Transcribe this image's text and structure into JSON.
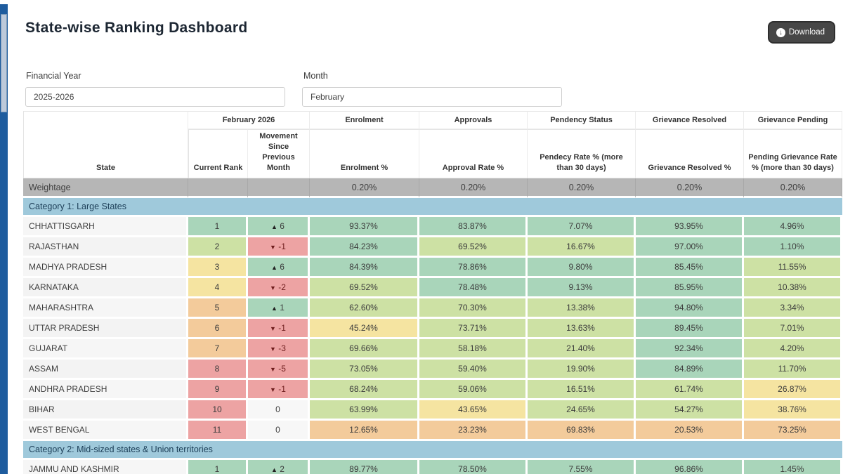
{
  "page": {
    "title": "State-wise Ranking Dashboard"
  },
  "toolbar": {
    "download_label": "Download"
  },
  "filters": {
    "financial_year": {
      "label": "Financial Year",
      "value": "2025-2026"
    },
    "month": {
      "label": "Month",
      "value": "February"
    }
  },
  "colors": {
    "g": "#a9d5ba",
    "lg": "#cde1a4",
    "y": "#f5e4a1",
    "o": "#f3cb9b",
    "r": "#eda3a3",
    "w": "#f7f7f7",
    "category_blue": "#9fc9db",
    "weightage_gray": "#b6b6b6",
    "scroll_track": "#1e5c9e",
    "button_dark": "#474747"
  },
  "table": {
    "group_headers": [
      "February 2026",
      "Enrolment",
      "Approvals",
      "Pendency Status",
      "Grievance Resolved",
      "Grievance Pending"
    ],
    "sub_headers": [
      "State",
      "Current Rank",
      "Movement Since Previous Month",
      "Enrolment %",
      "Approval Rate %",
      "Pendecy Rate % (more than 30 days)",
      "Grievance Resolved %",
      "Pending Grievance Rate % (more than 30 days)"
    ],
    "weightage": {
      "label": "Weightage",
      "values": [
        "0.20%",
        "0.20%",
        "0.20%",
        "0.20%",
        "0.20%"
      ]
    },
    "sections": [
      {
        "category": "Category 1: Large States",
        "rows": [
          {
            "state": "CHHATTISGARH",
            "rank": "1",
            "rank_color": "g",
            "movement": {
              "dir": "up",
              "value": "6",
              "color": "g"
            },
            "cells": [
              {
                "v": "93.37%",
                "c": "g"
              },
              {
                "v": "83.87%",
                "c": "g"
              },
              {
                "v": "7.07%",
                "c": "g"
              },
              {
                "v": "93.95%",
                "c": "g"
              },
              {
                "v": "4.96%",
                "c": "g"
              }
            ]
          },
          {
            "state": "RAJASTHAN",
            "rank": "2",
            "rank_color": "lg",
            "movement": {
              "dir": "down",
              "value": "-1",
              "color": "r"
            },
            "cells": [
              {
                "v": "84.23%",
                "c": "g"
              },
              {
                "v": "69.52%",
                "c": "lg"
              },
              {
                "v": "16.67%",
                "c": "lg"
              },
              {
                "v": "97.00%",
                "c": "g"
              },
              {
                "v": "1.10%",
                "c": "g"
              }
            ]
          },
          {
            "state": "MADHYA PRADESH",
            "rank": "3",
            "rank_color": "y",
            "movement": {
              "dir": "up",
              "value": "6",
              "color": "g"
            },
            "cells": [
              {
                "v": "84.39%",
                "c": "g"
              },
              {
                "v": "78.86%",
                "c": "g"
              },
              {
                "v": "9.80%",
                "c": "g"
              },
              {
                "v": "85.45%",
                "c": "g"
              },
              {
                "v": "11.55%",
                "c": "lg"
              }
            ]
          },
          {
            "state": "KARNATAKA",
            "rank": "4",
            "rank_color": "y",
            "movement": {
              "dir": "down",
              "value": "-2",
              "color": "r"
            },
            "cells": [
              {
                "v": "69.52%",
                "c": "lg"
              },
              {
                "v": "78.48%",
                "c": "g"
              },
              {
                "v": "9.13%",
                "c": "g"
              },
              {
                "v": "85.95%",
                "c": "g"
              },
              {
                "v": "10.38%",
                "c": "lg"
              }
            ]
          },
          {
            "state": "MAHARASHTRA",
            "rank": "5",
            "rank_color": "o",
            "movement": {
              "dir": "up",
              "value": "1",
              "color": "g"
            },
            "cells": [
              {
                "v": "62.60%",
                "c": "lg"
              },
              {
                "v": "70.30%",
                "c": "lg"
              },
              {
                "v": "13.38%",
                "c": "lg"
              },
              {
                "v": "94.80%",
                "c": "g"
              },
              {
                "v": "3.34%",
                "c": "lg"
              }
            ]
          },
          {
            "state": "UTTAR PRADESH",
            "rank": "6",
            "rank_color": "o",
            "movement": {
              "dir": "down",
              "value": "-1",
              "color": "r"
            },
            "cells": [
              {
                "v": "45.24%",
                "c": "y"
              },
              {
                "v": "73.71%",
                "c": "lg"
              },
              {
                "v": "13.63%",
                "c": "lg"
              },
              {
                "v": "89.45%",
                "c": "g"
              },
              {
                "v": "7.01%",
                "c": "lg"
              }
            ]
          },
          {
            "state": "GUJARAT",
            "rank": "7",
            "rank_color": "o",
            "movement": {
              "dir": "down",
              "value": "-3",
              "color": "r"
            },
            "cells": [
              {
                "v": "69.66%",
                "c": "lg"
              },
              {
                "v": "58.18%",
                "c": "lg"
              },
              {
                "v": "21.40%",
                "c": "lg"
              },
              {
                "v": "92.34%",
                "c": "g"
              },
              {
                "v": "4.20%",
                "c": "lg"
              }
            ]
          },
          {
            "state": "ASSAM",
            "rank": "8",
            "rank_color": "r",
            "movement": {
              "dir": "down",
              "value": "-5",
              "color": "r"
            },
            "cells": [
              {
                "v": "73.05%",
                "c": "lg"
              },
              {
                "v": "59.40%",
                "c": "lg"
              },
              {
                "v": "19.90%",
                "c": "lg"
              },
              {
                "v": "84.89%",
                "c": "g"
              },
              {
                "v": "11.70%",
                "c": "lg"
              }
            ]
          },
          {
            "state": "ANDHRA PRADESH",
            "rank": "9",
            "rank_color": "r",
            "movement": {
              "dir": "down",
              "value": "-1",
              "color": "r"
            },
            "cells": [
              {
                "v": "68.24%",
                "c": "lg"
              },
              {
                "v": "59.06%",
                "c": "lg"
              },
              {
                "v": "16.51%",
                "c": "lg"
              },
              {
                "v": "61.74%",
                "c": "lg"
              },
              {
                "v": "26.87%",
                "c": "y"
              }
            ]
          },
          {
            "state": "BIHAR",
            "rank": "10",
            "rank_color": "r",
            "movement": {
              "dir": "none",
              "value": "0",
              "color": "w"
            },
            "cells": [
              {
                "v": "63.99%",
                "c": "lg"
              },
              {
                "v": "43.65%",
                "c": "y"
              },
              {
                "v": "24.65%",
                "c": "lg"
              },
              {
                "v": "54.27%",
                "c": "lg"
              },
              {
                "v": "38.76%",
                "c": "y"
              }
            ]
          },
          {
            "state": "WEST BENGAL",
            "rank": "11",
            "rank_color": "r",
            "movement": {
              "dir": "none",
              "value": "0",
              "color": "w"
            },
            "cells": [
              {
                "v": "12.65%",
                "c": "o"
              },
              {
                "v": "23.23%",
                "c": "o"
              },
              {
                "v": "69.83%",
                "c": "o"
              },
              {
                "v": "20.53%",
                "c": "o"
              },
              {
                "v": "73.25%",
                "c": "o"
              }
            ]
          }
        ]
      },
      {
        "category": "Category 2: Mid-sized states & Union territories",
        "rows": [
          {
            "state": "JAMMU AND KASHMIR",
            "rank": "1",
            "rank_color": "g",
            "movement": {
              "dir": "up",
              "value": "2",
              "color": "g"
            },
            "cells": [
              {
                "v": "89.77%",
                "c": "g"
              },
              {
                "v": "78.50%",
                "c": "g"
              },
              {
                "v": "7.55%",
                "c": "g"
              },
              {
                "v": "96.86%",
                "c": "g"
              },
              {
                "v": "1.45%",
                "c": "g"
              }
            ]
          }
        ]
      }
    ],
    "partial_row": {
      "rank_color": "lg",
      "movement_color": "r",
      "cell_colors": [
        "g",
        "g",
        "g",
        "g",
        "g"
      ]
    }
  }
}
